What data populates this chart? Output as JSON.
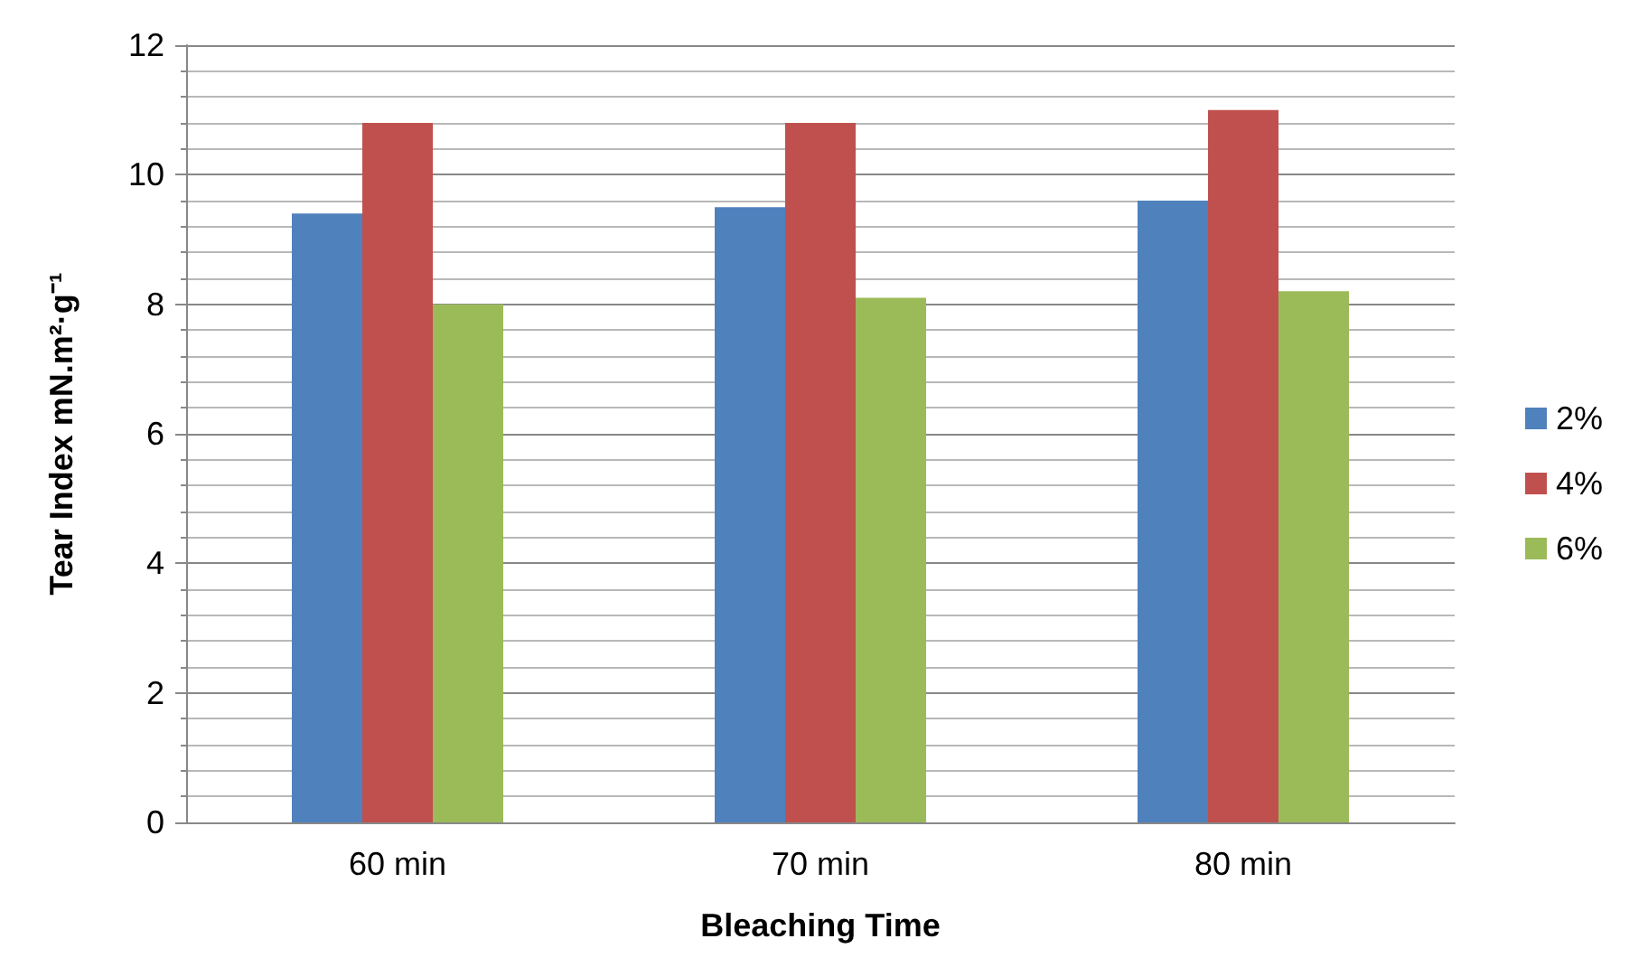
{
  "chart_data": {
    "type": "bar",
    "xlabel": "Bleaching Time",
    "ylabel": "Tear Index mN.m²·g⁻¹",
    "categories": [
      "60 min",
      "70 min",
      "80 min"
    ],
    "series": [
      {
        "name": "2%",
        "color": "#4f81bd",
        "values": [
          9.4,
          9.5,
          9.6
        ]
      },
      {
        "name": "4%",
        "color": "#c0504d",
        "values": [
          10.8,
          10.8,
          11.0
        ]
      },
      {
        "name": "6%",
        "color": "#9bbb59",
        "values": [
          8.0,
          8.1,
          8.2
        ]
      }
    ],
    "ylim": [
      0,
      12
    ],
    "yticks": [
      0,
      2,
      4,
      6,
      8,
      10,
      12
    ],
    "grid": "y",
    "legend": "right"
  }
}
